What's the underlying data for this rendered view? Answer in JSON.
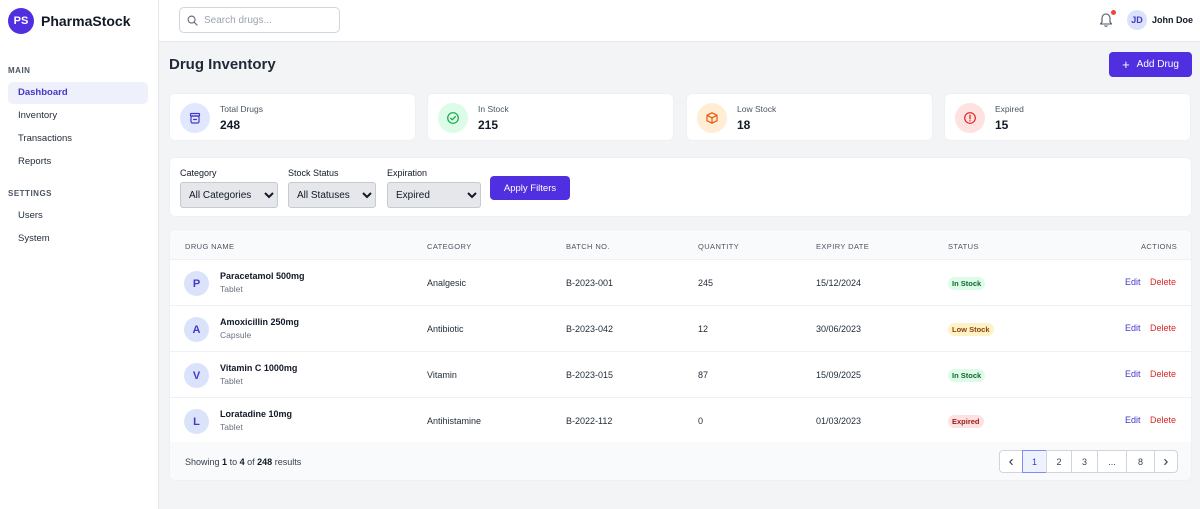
{
  "brand": {
    "logo": "PS",
    "name": "PharmaStock"
  },
  "sidebar": {
    "sections": [
      {
        "label": "MAIN",
        "items": [
          {
            "label": "Dashboard",
            "active": true
          },
          {
            "label": "Inventory"
          },
          {
            "label": "Transactions"
          },
          {
            "label": "Reports"
          }
        ]
      },
      {
        "label": "SETTINGS",
        "items": [
          {
            "label": "Users"
          },
          {
            "label": "System"
          }
        ]
      }
    ]
  },
  "topbar": {
    "search_placeholder": "Search drugs...",
    "user_initials": "JD",
    "user_name": "John Doe"
  },
  "page": {
    "title": "Drug Inventory",
    "add_button": "Add Drug"
  },
  "stats": [
    {
      "label": "Total Drugs",
      "value": "248",
      "icon": "pill-bottle-icon",
      "color": "#4338ca",
      "bg": "#e0e7ff"
    },
    {
      "label": "In Stock",
      "value": "215",
      "icon": "check-circle-icon",
      "color": "#16a34a",
      "bg": "#dcfce7"
    },
    {
      "label": "Low Stock",
      "value": "18",
      "icon": "box-icon",
      "color": "#ea580c",
      "bg": "#ffedd5"
    },
    {
      "label": "Expired",
      "value": "15",
      "icon": "alert-circle-icon",
      "color": "#dc2626",
      "bg": "#fee2e2"
    }
  ],
  "filters": {
    "category": {
      "label": "Category",
      "selected": "All Categories"
    },
    "stock_status": {
      "label": "Stock Status",
      "selected": "All Statuses"
    },
    "expiration": {
      "label": "Expiration",
      "selected": "Expired"
    },
    "apply": "Apply Filters"
  },
  "table": {
    "headers": [
      "DRUG NAME",
      "CATEGORY",
      "BATCH NO.",
      "QUANTITY",
      "EXPIRY DATE",
      "STATUS",
      "ACTIONS"
    ],
    "rows": [
      {
        "initial": "P",
        "name": "Paracetamol 500mg",
        "form": "Tablet",
        "category": "Analgesic",
        "batch": "B-2023-001",
        "quantity": "245",
        "expiry": "15/12/2024",
        "status": "In Stock",
        "status_type": "in"
      },
      {
        "initial": "A",
        "name": "Amoxicillin 250mg",
        "form": "Capsule",
        "category": "Antibiotic",
        "batch": "B-2023-042",
        "quantity": "12",
        "expiry": "30/06/2023",
        "status": "Low Stock",
        "status_type": "low"
      },
      {
        "initial": "V",
        "name": "Vitamin C 1000mg",
        "form": "Tablet",
        "category": "Vitamin",
        "batch": "B-2023-015",
        "quantity": "87",
        "expiry": "15/09/2025",
        "status": "In Stock",
        "status_type": "in"
      },
      {
        "initial": "L",
        "name": "Loratadine 10mg",
        "form": "Tablet",
        "category": "Antihistamine",
        "batch": "B-2022-112",
        "quantity": "0",
        "expiry": "01/03/2023",
        "status": "Expired",
        "status_type": "exp"
      }
    ],
    "edit_label": "Edit",
    "delete_label": "Delete"
  },
  "pagination": {
    "showing_prefix": "Showing",
    "from": "1",
    "to_word": "to",
    "to": "4",
    "of_word": "of",
    "total": "248",
    "suffix": "results",
    "pages": [
      "1",
      "2",
      "3",
      "...",
      "8"
    ],
    "current": "1"
  }
}
